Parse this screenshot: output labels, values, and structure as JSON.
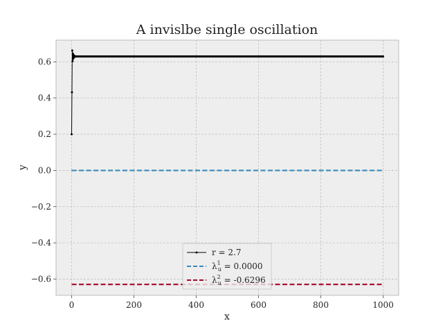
{
  "chart_data": {
    "type": "line",
    "title": "A invislbe single oscillation",
    "xlabel": "x",
    "ylabel": "y",
    "xlim": [
      -50,
      1050
    ],
    "ylim": [
      -0.69,
      0.72
    ],
    "xticks": [
      0,
      200,
      400,
      600,
      800,
      1000
    ],
    "xtick_labels": [
      "0",
      "200",
      "400",
      "600",
      "800",
      "1000"
    ],
    "yticks": [
      -0.6,
      -0.4,
      -0.2,
      0.0,
      0.2,
      0.4,
      0.6
    ],
    "ytick_labels": [
      "−0.6",
      "−0.4",
      "−0.2",
      "0.0",
      "0.2",
      "0.4",
      "0.6"
    ],
    "grid": true,
    "legend_position": "bottom-center",
    "series": [
      {
        "name": "r = 2.7",
        "color": "#000000",
        "style": "solid-with-markers",
        "x": [
          0,
          1,
          2,
          3,
          4,
          5,
          6,
          7,
          8,
          9,
          10,
          1000
        ],
        "y": [
          0.2,
          0.432,
          0.6625,
          0.6037,
          0.6457,
          0.6173,
          0.6379,
          0.6237,
          0.6339,
          0.6269,
          0.6319,
          0.6296
        ]
      },
      {
        "name": "λ_u^1 = 0.0000",
        "color": "#348abd",
        "style": "dashed",
        "x": [
          0,
          1000
        ],
        "y": [
          0.0,
          0.0
        ]
      },
      {
        "name": "λ_u^2 = -0.6296",
        "color": "#a60628",
        "style": "dashed",
        "x": [
          0,
          1000
        ],
        "y": [
          -0.6296,
          -0.6296
        ]
      }
    ],
    "legend": [
      {
        "symbol": "λ",
        "sup": "",
        "sub": "",
        "rest": "r = 2.7"
      },
      {
        "symbol": "λ",
        "sup": "1",
        "sub": "u",
        "rest": " = 0.0000"
      },
      {
        "symbol": "λ",
        "sup": "2",
        "sub": "u",
        "rest": " = -0.6296"
      }
    ]
  }
}
